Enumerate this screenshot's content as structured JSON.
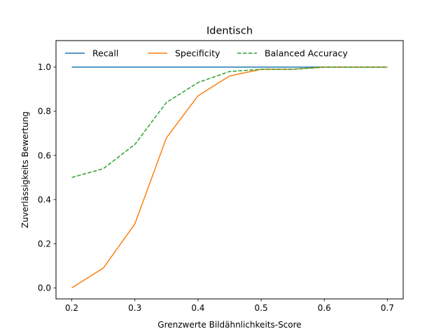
{
  "chart_data": {
    "type": "line",
    "title": "Identisch",
    "xlabel": "Grenzwerte Bildähnlichkeits-Score",
    "ylabel": "Zuverlässigkeits Bewertung",
    "x": [
      0.2,
      0.25,
      0.3,
      0.35,
      0.4,
      0.45,
      0.5,
      0.55,
      0.6,
      0.65,
      0.7
    ],
    "xlim": [
      0.175,
      0.725
    ],
    "ylim": [
      -0.05,
      1.12
    ],
    "xticks": [
      "0.2",
      "0.3",
      "0.4",
      "0.5",
      "0.6",
      "0.7"
    ],
    "yticks": [
      "0.0",
      "0.2",
      "0.4",
      "0.6",
      "0.8",
      "1.0"
    ],
    "legend_position": "top",
    "grid": false,
    "series": [
      {
        "name": "Recall",
        "color": "#1f77b4",
        "dash": "solid",
        "values": [
          1.0,
          1.0,
          1.0,
          1.0,
          1.0,
          1.0,
          1.0,
          1.0,
          1.0,
          1.0,
          1.0
        ]
      },
      {
        "name": "Specificity",
        "color": "#ff7f0e",
        "dash": "solid",
        "values": [
          0.0,
          0.09,
          0.29,
          0.68,
          0.87,
          0.96,
          0.99,
          0.99,
          1.0,
          1.0,
          1.0
        ]
      },
      {
        "name": "Balanced Accuracy",
        "color": "#2ca02c",
        "dash": "dashed",
        "values": [
          0.5,
          0.54,
          0.65,
          0.84,
          0.93,
          0.98,
          0.99,
          0.99,
          1.0,
          1.0,
          1.0
        ]
      }
    ]
  }
}
